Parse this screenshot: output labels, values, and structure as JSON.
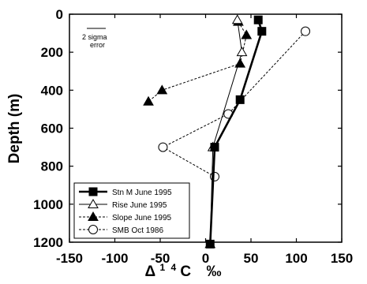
{
  "chart_data": {
    "type": "line",
    "xlabel": "Δ14C ‰",
    "xlabel_parts": {
      "delta": "Δ",
      "sup1": "1",
      "sup2": "4",
      "letter": "C",
      "unit": "‰"
    },
    "ylabel": "Depth (m)",
    "xlim": [
      -150,
      150
    ],
    "ylim": [
      1200,
      0
    ],
    "y_inverted": true,
    "x_ticks": [
      -150,
      -100,
      -50,
      0,
      50,
      100,
      150
    ],
    "x_tick_labels": [
      "-150",
      "-100",
      "-50",
      "0",
      "50",
      "100",
      "150"
    ],
    "y_ticks": [
      0,
      200,
      400,
      600,
      800,
      1000,
      1200
    ],
    "y_tick_labels": [
      "0",
      "200",
      "400",
      "600",
      "800",
      "1000",
      "1200"
    ],
    "legend_position": "bottom-left",
    "annotation": {
      "line1": "2 sigma",
      "line2": "error"
    },
    "series": [
      {
        "name": "Stn M June 1995",
        "marker": "filled-square",
        "line": "solid-thick",
        "points": [
          [
            58,
            30
          ],
          [
            62,
            90
          ],
          [
            38,
            450
          ],
          [
            10,
            700
          ],
          [
            5,
            1210
          ]
        ]
      },
      {
        "name": "Rise June 1995",
        "marker": "open-triangle",
        "line": "solid-thin",
        "points": [
          [
            35,
            30
          ],
          [
            40,
            200
          ],
          [
            8,
            700
          ],
          [
            5,
            1210
          ]
        ]
      },
      {
        "name": "Slope June 1995",
        "marker": "filled-triangle",
        "line": "dashed",
        "points": [
          [
            36,
            40
          ],
          [
            45,
            110
          ],
          [
            38,
            260
          ],
          [
            -48,
            400
          ],
          [
            -63,
            460
          ]
        ]
      },
      {
        "name": "SMB Oct 1986",
        "marker": "open-circle",
        "line": "dashed",
        "points": [
          [
            110,
            90
          ],
          [
            25,
            525
          ],
          [
            -47,
            700
          ],
          [
            10,
            855
          ]
        ]
      }
    ]
  }
}
